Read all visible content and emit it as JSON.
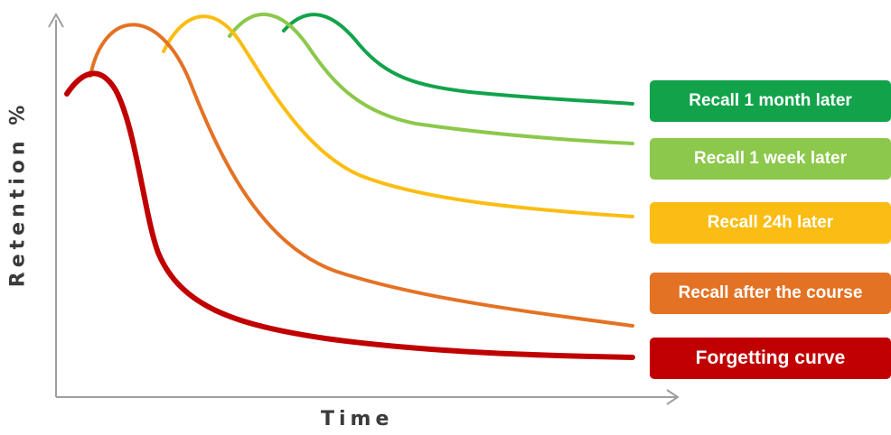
{
  "axes": {
    "y_label": "Retention %",
    "x_label": "Time"
  },
  "curves": [
    {
      "key": "month",
      "label": "Recall 1 month later",
      "color": "#12a34a"
    },
    {
      "key": "week",
      "label": "Recall 1 week later",
      "color": "#8cc84b"
    },
    {
      "key": "day",
      "label": "Recall 24h later",
      "color": "#fbbd13"
    },
    {
      "key": "course",
      "label": "Recall after the course",
      "color": "#e47224"
    },
    {
      "key": "forget",
      "label": "Forgetting curve",
      "color": "#c00000"
    }
  ],
  "axis_color": "#9e9e9e"
}
